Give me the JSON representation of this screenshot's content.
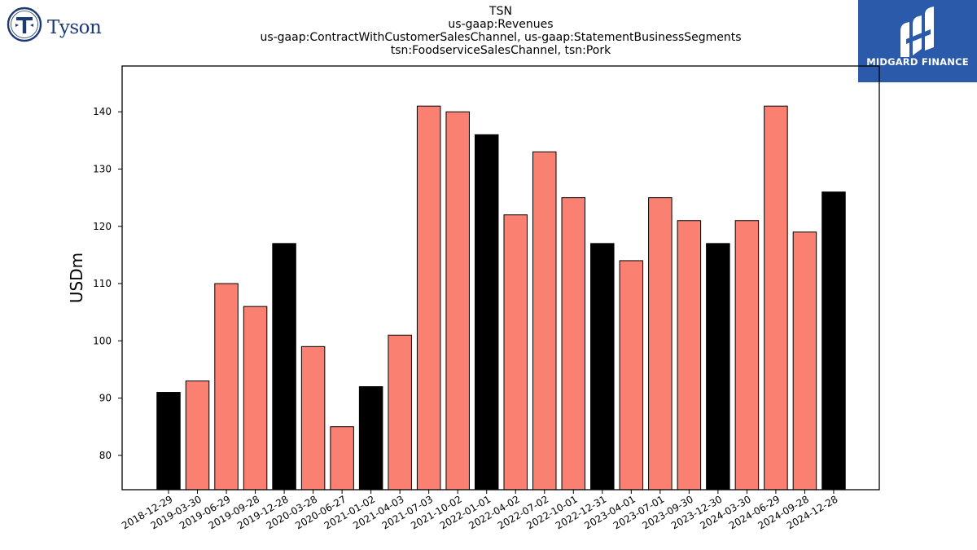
{
  "logos": {
    "left_text": "Tyson",
    "right_text": "MIDGARD FINANCE",
    "left_icon": "tyson-emblem-icon",
    "right_icon": "midgard-finance-mark-icon",
    "left_color": "#1d3a73",
    "right_color": "#2b5aab"
  },
  "chart_data": {
    "type": "bar",
    "title_lines": [
      "TSN",
      "us-gaap:Revenues",
      "us-gaap:ContractWithCustomerSalesChannel, us-gaap:StatementBusinessSegments",
      "tsn:FoodserviceSalesChannel, tsn:Pork"
    ],
    "xlabel": "",
    "ylabel": "USDm",
    "ylim": [
      74,
      148
    ],
    "yticks": [
      80,
      90,
      100,
      110,
      120,
      130,
      140
    ],
    "grid": false,
    "categories": [
      "2018-12-29",
      "2019-03-30",
      "2019-06-29",
      "2019-09-28",
      "2019-12-28",
      "2020-03-28",
      "2020-06-27",
      "2021-01-02",
      "2021-04-03",
      "2021-07-03",
      "2021-10-02",
      "2022-01-01",
      "2022-04-02",
      "2022-07-02",
      "2022-10-01",
      "2022-12-31",
      "2023-04-01",
      "2023-07-01",
      "2023-09-30",
      "2023-12-30",
      "2024-03-30",
      "2024-06-29",
      "2024-09-28",
      "2024-12-28"
    ],
    "values": [
      91,
      93,
      110,
      106,
      117,
      99,
      85,
      92,
      101,
      141,
      140,
      136,
      122,
      133,
      125,
      117,
      114,
      125,
      121,
      117,
      121,
      141,
      119,
      126
    ],
    "highlight": [
      true,
      false,
      false,
      false,
      true,
      false,
      false,
      true,
      false,
      false,
      false,
      true,
      false,
      false,
      false,
      true,
      false,
      false,
      false,
      true,
      false,
      false,
      false,
      true
    ],
    "colors": {
      "highlight": "#000000",
      "normal": "#fa8072",
      "edge": "#000000"
    }
  }
}
